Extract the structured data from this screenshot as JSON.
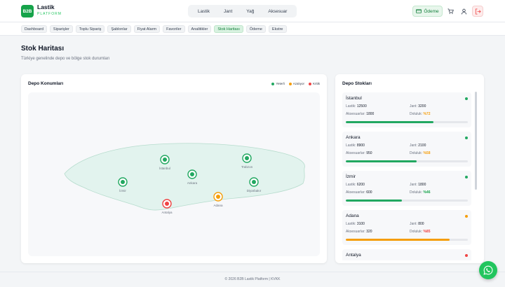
{
  "brand": {
    "logo": "B2B",
    "name": "Lastik",
    "sub": "PLATFORM"
  },
  "main_nav": [
    "Lastik",
    "Jant",
    "Yağ",
    "Aksesuar"
  ],
  "header": {
    "odeme_label": "Ödeme",
    "icons": [
      "credit-card-icon",
      "cart-icon",
      "user-icon",
      "logout-icon"
    ]
  },
  "subnav": {
    "items": [
      "Dashboard",
      "Siparişler",
      "Toplu Sipariş",
      "Şablonlar",
      "Fiyat Alarm",
      "Favoriler",
      "Analitikler",
      "Stok Haritası",
      "Ödeme",
      "Ekstre"
    ],
    "active": "Stok Haritası"
  },
  "page": {
    "title": "Stok Haritası",
    "subtitle": "Türkiye genelinde depo ve bölge stok durumları"
  },
  "map": {
    "title": "Depo Konumları",
    "legend": [
      {
        "label": "Yeterli",
        "color": "#22a861"
      },
      {
        "label": "Azalıyor",
        "color": "#f59e0b"
      },
      {
        "label": "Kritik",
        "color": "#ef4444"
      }
    ],
    "warehouses": [
      {
        "name": "İstanbul",
        "status": "ok"
      },
      {
        "name": "Trabzon",
        "status": "ok"
      },
      {
        "name": "Ankara",
        "status": "ok"
      },
      {
        "name": "İzmir",
        "status": "ok"
      },
      {
        "name": "Diyarbakır",
        "status": "ok"
      },
      {
        "name": "Adana",
        "status": "warn"
      },
      {
        "name": "Antalya",
        "status": "crit"
      }
    ]
  },
  "stock": {
    "title": "Depo Stokları",
    "labels": {
      "lastik": "Lastik:",
      "jant": "Jant:",
      "aksesuar": "Aksesuarlar:",
      "doluluk": "Doluluk:"
    },
    "items": [
      {
        "name": "İstanbul",
        "lastik": "12500",
        "jant": "3200",
        "aksesuar": "1800",
        "doluluk": "%72",
        "fill": 0.72,
        "status": "ok"
      },
      {
        "name": "Ankara",
        "lastik": "8900",
        "jant": "2100",
        "aksesuar": "950",
        "doluluk": "%58",
        "fill": 0.58,
        "status": "ok"
      },
      {
        "name": "İzmir",
        "lastik": "6200",
        "jant": "1800",
        "aksesuar": "600",
        "doluluk": "%46",
        "fill": 0.46,
        "status": "ok"
      },
      {
        "name": "Adana",
        "lastik": "3100",
        "jant": "800",
        "aksesuar": "320",
        "doluluk": "%85",
        "fill": 0.85,
        "status": "warn"
      },
      {
        "name": "Antalya",
        "status": "crit"
      }
    ]
  },
  "colors": {
    "ok": "#22a861",
    "warn": "#f59e0b",
    "crit": "#ef4444",
    "brand": "#16a34a"
  },
  "footer": {
    "text": "© 2026 B2B Lastik Platform | KVKK"
  }
}
